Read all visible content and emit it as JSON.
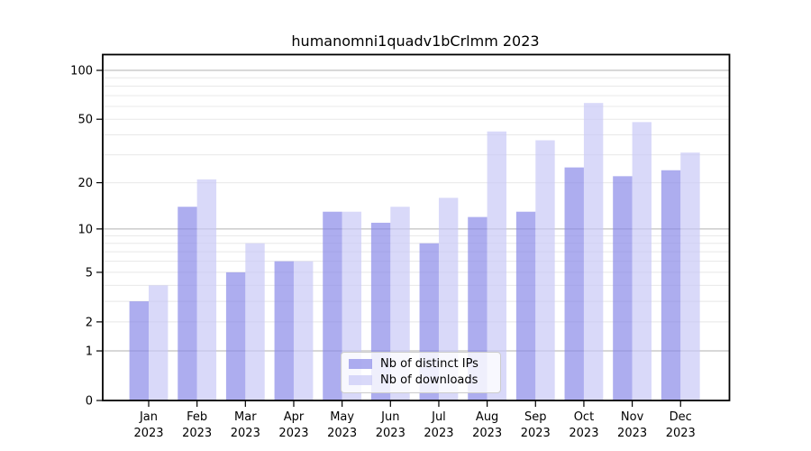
{
  "chart_data": {
    "type": "bar",
    "title": "humanomni1quadv1bCrlmm 2023",
    "year_label": "2023",
    "categories": [
      "Jan",
      "Feb",
      "Mar",
      "Apr",
      "May",
      "Jun",
      "Jul",
      "Aug",
      "Sep",
      "Oct",
      "Nov",
      "Dec"
    ],
    "series": [
      {
        "name": "Nb of distinct IPs",
        "color": "#8a8ae8",
        "opacity": 0.7,
        "values": [
          3,
          14,
          5,
          6,
          13,
          11,
          8,
          12,
          13,
          25,
          22,
          24
        ]
      },
      {
        "name": "Nb of downloads",
        "color": "#c9c9f6",
        "opacity": 0.7,
        "values": [
          4,
          21,
          8,
          6,
          13,
          14,
          16,
          42,
          37,
          63,
          48,
          31
        ]
      }
    ],
    "xlabel": "",
    "ylabel": "",
    "y_scale": "log(v+1)",
    "ylim": [
      0,
      125
    ],
    "y_ticks": [
      0,
      1,
      2,
      5,
      10,
      20,
      50,
      100
    ],
    "y_major_gridlines": [
      1,
      10,
      100
    ],
    "y_minor_gridlines": [
      2,
      3,
      4,
      5,
      6,
      7,
      8,
      9,
      20,
      30,
      40,
      50,
      60,
      70,
      80,
      90
    ],
    "grid": "on",
    "legend_position": "lower center",
    "colors": {
      "major_grid": "#b0b0b0",
      "minor_grid": "#e8e8e8",
      "axis": "#000000",
      "text": "#000000"
    }
  }
}
